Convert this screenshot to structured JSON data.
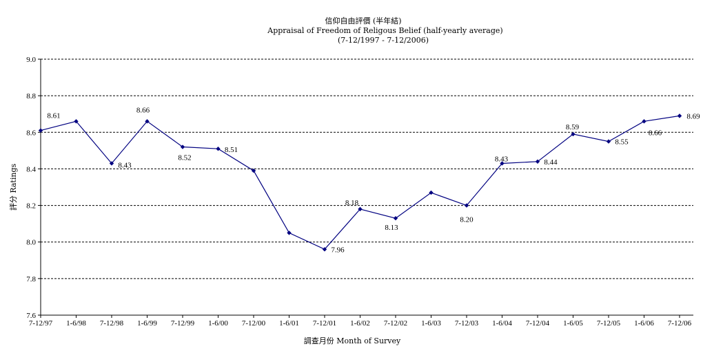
{
  "chart_data": {
    "type": "line",
    "title": "信仰自由評價 (半年結)",
    "subtitle": "Appraisal of Freedom of Religous Belief (half-yearly average)",
    "subtitle2": "(7-12/1997 - 7-12/2006)",
    "xlabel": "調查月份 Month of Survey",
    "ylabel": "評分 Ratings",
    "categories": [
      "7-12/97",
      "1-6/98",
      "7-12/98",
      "1-6/99",
      "7-12/99",
      "1-6/00",
      "7-12/00",
      "1-6/01",
      "7-12/01",
      "1-6/02",
      "7-12/02",
      "1-6/03",
      "7-12/03",
      "1-6/04",
      "7-12/04",
      "1-6/05",
      "7-12/05",
      "1-6/06",
      "7-12/06"
    ],
    "series": [
      {
        "values": [
          8.61,
          8.66,
          8.43,
          8.66,
          8.52,
          8.51,
          8.39,
          8.05,
          7.96,
          8.18,
          8.13,
          8.27,
          8.2,
          8.43,
          8.44,
          8.59,
          8.55,
          8.66,
          8.69
        ]
      }
    ],
    "data_labels": [
      {
        "index": 0,
        "text": "8.61"
      },
      {
        "index": 2,
        "text": "8.43"
      },
      {
        "index": 3,
        "text": "8.66"
      },
      {
        "index": 4,
        "text": "8.52"
      },
      {
        "index": 5,
        "text": "8.51"
      },
      {
        "index": 8,
        "text": "7.96"
      },
      {
        "index": 9,
        "text": "8.18"
      },
      {
        "index": 10,
        "text": "8.13"
      },
      {
        "index": 12,
        "text": "8.20"
      },
      {
        "index": 13,
        "text": "8.43"
      },
      {
        "index": 14,
        "text": "8.44"
      },
      {
        "index": 15,
        "text": "8.59"
      },
      {
        "index": 16,
        "text": "8.55"
      },
      {
        "index": 17,
        "text": "8.66"
      },
      {
        "index": 18,
        "text": "8.69"
      }
    ],
    "ylim": [
      7.6,
      9.0
    ],
    "yticks": [
      "9.0",
      "8.8",
      "8.6",
      "8.4",
      "8.2",
      "8.0",
      "7.8",
      "7.6"
    ],
    "grid": true,
    "line_color": "#000080"
  }
}
